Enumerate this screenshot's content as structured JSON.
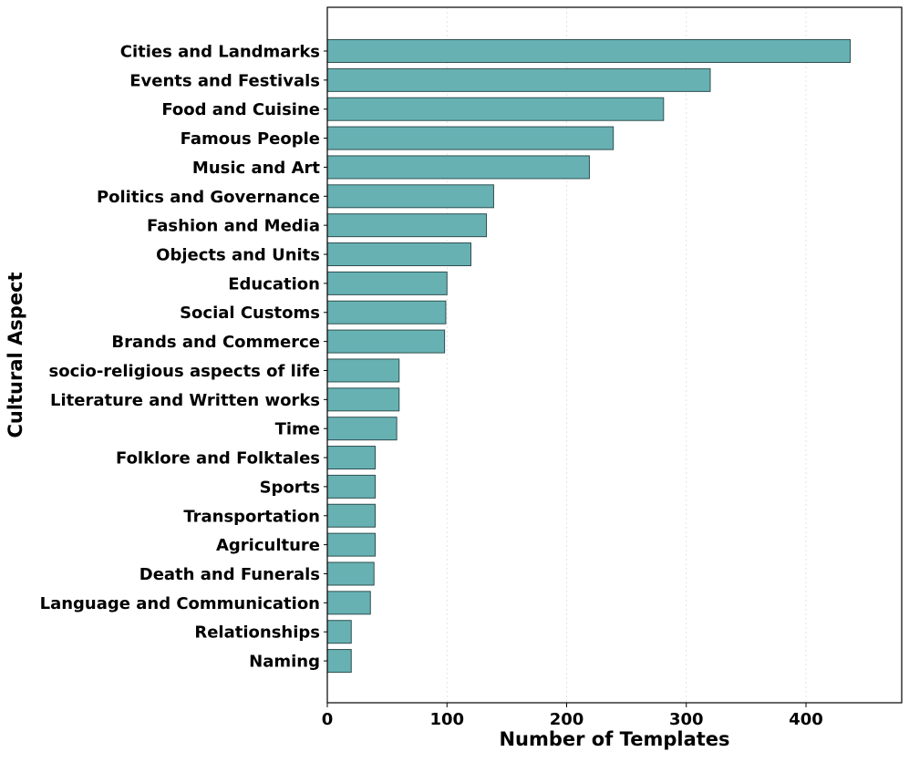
{
  "chart_data": {
    "type": "bar",
    "orientation": "horizontal",
    "xlabel": "Number of Templates",
    "ylabel": "Cultural Aspect",
    "xlim": [
      0,
      480
    ],
    "xticks": [
      0,
      100,
      200,
      300,
      400
    ],
    "grid": "x-axis, dotted, light",
    "bar_color": "#67b1b3",
    "bar_edge_color": "#2f4f4f",
    "categories": [
      "Cities and Landmarks",
      "Events and Festivals",
      "Food and Cuisine",
      "Famous People",
      "Music and Art",
      "Politics and Governance",
      "Fashion and Media",
      "Objects and Units",
      "Education",
      "Social Customs",
      "Brands and Commerce",
      "socio-religious aspects of life",
      "Literature and Written works",
      "Time",
      "Folklore and Folktales",
      "Sports",
      "Transportation",
      "Agriculture",
      "Death and Funerals",
      "Language and Communication",
      "Relationships",
      "Naming"
    ],
    "values": [
      437,
      320,
      281,
      239,
      219,
      139,
      133,
      120,
      100,
      99,
      98,
      60,
      60,
      58,
      40,
      40,
      40,
      40,
      39,
      36,
      20,
      20
    ]
  }
}
